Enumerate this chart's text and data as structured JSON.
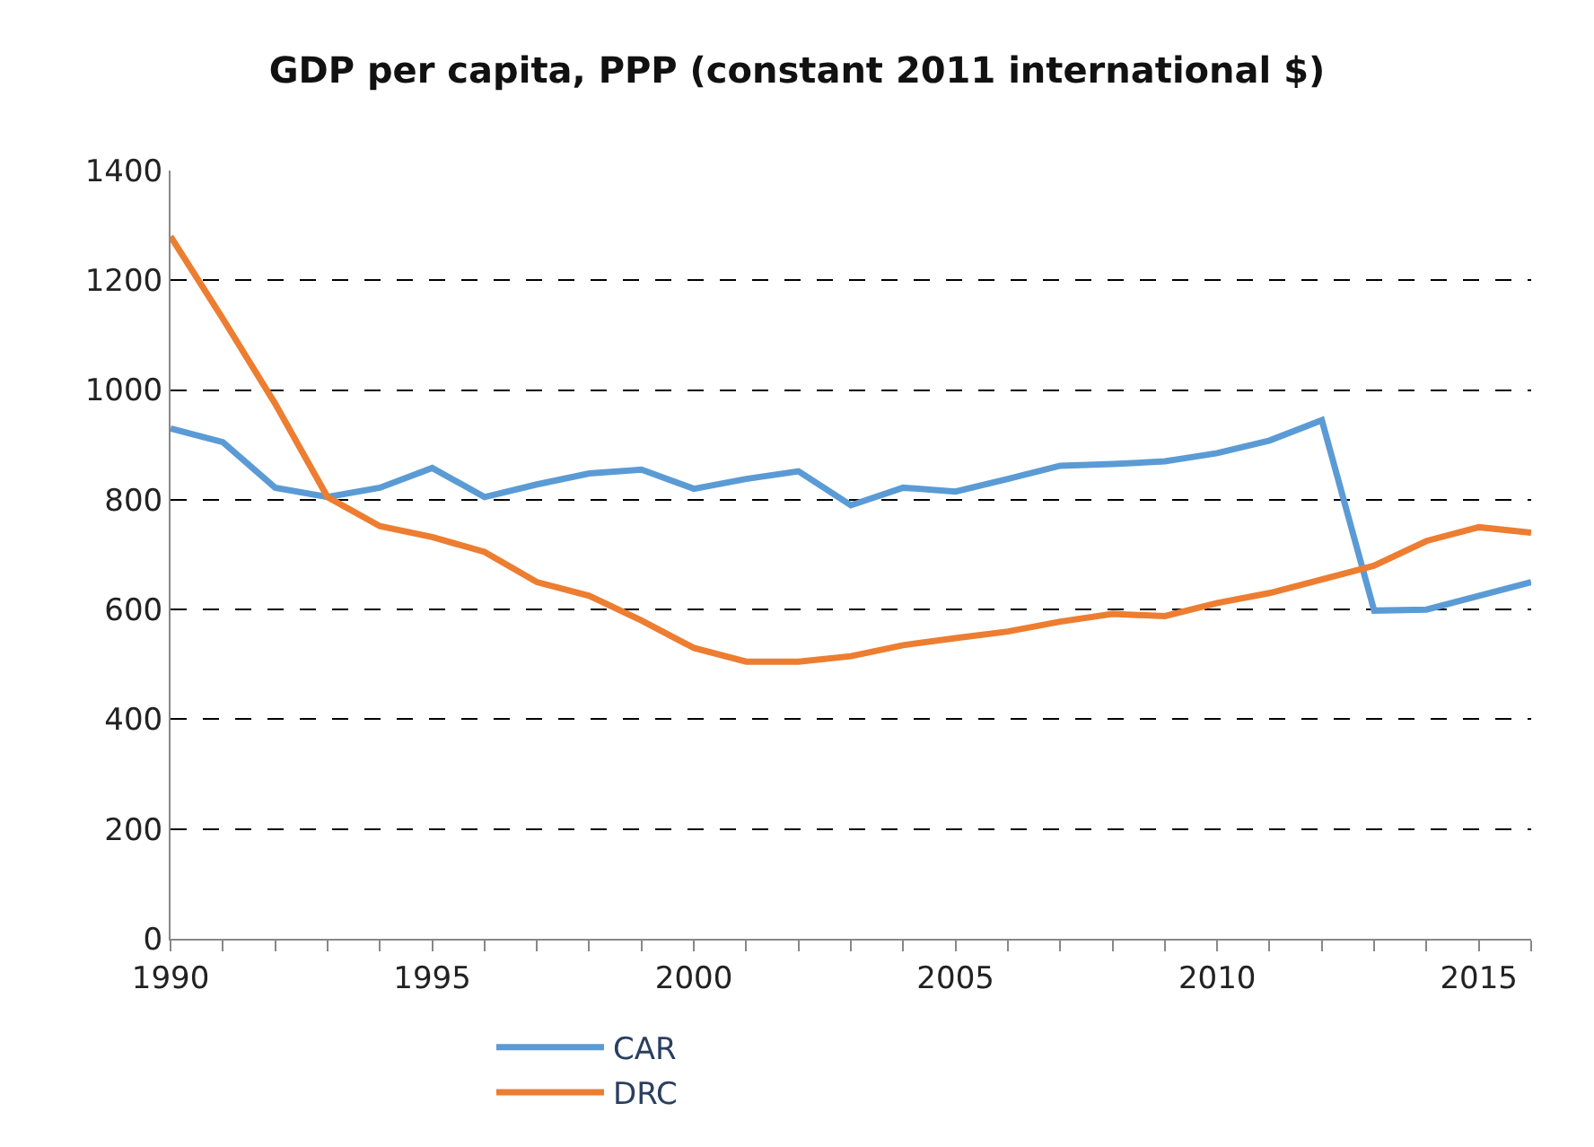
{
  "chart_data": {
    "type": "line",
    "title": "GDP per capita, PPP (constant 2011 international $)",
    "x": [
      1990,
      1991,
      1992,
      1993,
      1994,
      1995,
      1996,
      1997,
      1998,
      1999,
      2000,
      2001,
      2002,
      2003,
      2004,
      2005,
      2006,
      2007,
      2008,
      2009,
      2010,
      2011,
      2012,
      2013,
      2014,
      2015,
      2016
    ],
    "series": [
      {
        "name": "CAR",
        "color": "#5b9bd5",
        "values": [
          930,
          905,
          822,
          805,
          822,
          858,
          805,
          828,
          848,
          855,
          820,
          838,
          852,
          790,
          822,
          815,
          838,
          862,
          865,
          870,
          885,
          908,
          945,
          598,
          600,
          625,
          650
        ]
      },
      {
        "name": "DRC",
        "color": "#ed7d31",
        "values": [
          1280,
          1130,
          975,
          805,
          752,
          732,
          705,
          650,
          625,
          580,
          530,
          505,
          505,
          515,
          535,
          548,
          560,
          578,
          592,
          588,
          612,
          630,
          655,
          680,
          725,
          750,
          740
        ]
      }
    ],
    "xlim": [
      1990,
      2016
    ],
    "xticks": [
      1990,
      {
        "value": 1991,
        "label": null
      },
      {
        "value": 1992,
        "label": null
      },
      {
        "value": 1993,
        "label": null
      },
      {
        "value": 1994,
        "label": null
      },
      1995,
      {
        "value": 1996,
        "label": null
      },
      {
        "value": 1997,
        "label": null
      },
      {
        "value": 1998,
        "label": null
      },
      {
        "value": 1999,
        "label": null
      },
      2000,
      {
        "value": 2001,
        "label": null
      },
      {
        "value": 2002,
        "label": null
      },
      {
        "value": 2003,
        "label": null
      },
      {
        "value": 2004,
        "label": null
      },
      2005,
      {
        "value": 2006,
        "label": null
      },
      {
        "value": 2007,
        "label": null
      },
      {
        "value": 2008,
        "label": null
      },
      {
        "value": 2009,
        "label": null
      },
      2010,
      {
        "value": 2011,
        "label": null
      },
      {
        "value": 2012,
        "label": null
      },
      {
        "value": 2013,
        "label": null
      },
      {
        "value": 2014,
        "label": null
      },
      2015,
      {
        "value": 2016,
        "label": null
      }
    ],
    "ylim": [
      0,
      1400
    ],
    "yticks": [
      0,
      200,
      400,
      600,
      800,
      1000,
      1200,
      1400
    ],
    "grid": "y",
    "legend": "bottom",
    "marker": "none",
    "line_style": "solid"
  }
}
